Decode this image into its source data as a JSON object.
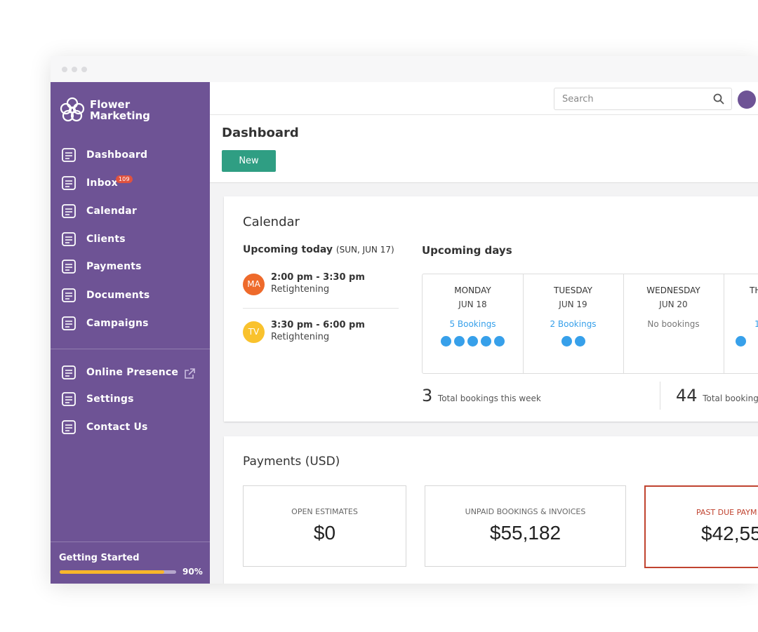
{
  "brand": {
    "line1": "Flower",
    "line2": "Marketing"
  },
  "nav": [
    {
      "label": "Dashboard"
    },
    {
      "label": "Inbox",
      "badge": 109
    },
    {
      "label": "Calendar"
    },
    {
      "label": "Clients"
    },
    {
      "label": "Payments"
    },
    {
      "label": "Documents"
    },
    {
      "label": "Campaigns"
    }
  ],
  "nav_secondary": [
    {
      "label": "Online Presence"
    },
    {
      "label": "Settings"
    },
    {
      "label": "Contact Us"
    }
  ],
  "getting_started": {
    "label": "Getting Started",
    "progress": 90,
    "progress_label": "90%"
  },
  "search": {
    "placeholder": "Search"
  },
  "page": {
    "title": "Dashboard",
    "new_button": "New"
  },
  "calendar": {
    "title": "Calendar",
    "today_heading": "Upcoming today",
    "today_date": "(SUN, JUN 17)",
    "appointments": [
      {
        "initials": "MA",
        "time": "2:00 pm - 3:30 pm",
        "service": "Retightening"
      },
      {
        "initials": "TV",
        "time": "3:30 pm - 6:00 pm",
        "service": "Retightening"
      }
    ],
    "upcoming_heading": "Upcoming days",
    "days": [
      {
        "day": "MONDAY",
        "date": "JUN 18",
        "bookings_label": "5 Bookings",
        "bookings": 5
      },
      {
        "day": "TUESDAY",
        "date": "JUN 19",
        "bookings_label": "2 Bookings",
        "bookings": 2
      },
      {
        "day": "WEDNESDAY",
        "date": "JUN 20",
        "bookings_label": "No bookings",
        "bookings": 0
      },
      {
        "day": "TH",
        "bookings_label": "1",
        "bookings": 1
      }
    ],
    "totals": [
      {
        "value": 3,
        "label": "Total bookings this week"
      },
      {
        "value": 44,
        "label": "Total booking"
      }
    ]
  },
  "payments": {
    "title": "Payments",
    "currency": "(USD)",
    "boxes": [
      {
        "label": "OPEN ESTIMATES",
        "amount": "$0"
      },
      {
        "label": "UNPAID BOOKINGS & INVOICES",
        "amount": "$55,182"
      },
      {
        "label": "PAST DUE PAYM",
        "amount": "$42,55"
      }
    ]
  }
}
